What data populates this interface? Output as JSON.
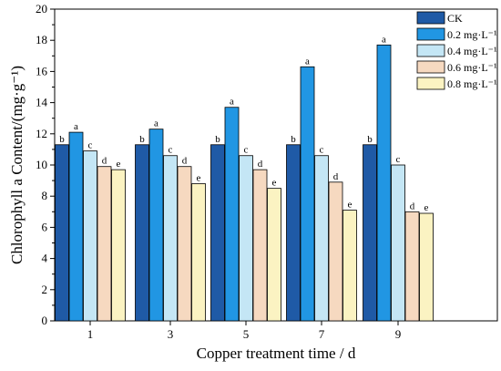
{
  "chart_data": {
    "type": "bar",
    "xlabel": "Copper treatment time / d",
    "ylabel": "Chlorophyll a Content/(mg·g⁻¹)",
    "ylim": [
      0,
      20
    ],
    "yticks": [
      0,
      2,
      4,
      6,
      8,
      10,
      12,
      14,
      16,
      18,
      20
    ],
    "categories": [
      "1",
      "3",
      "5",
      "7",
      "9"
    ],
    "legend_position": "top-right",
    "series": [
      {
        "name": "CK",
        "color": "#1f5aa6",
        "values": [
          11.3,
          11.3,
          11.3,
          11.3,
          11.3
        ],
        "labels": [
          "b",
          "b",
          "b",
          "b",
          "b"
        ]
      },
      {
        "name": "0.2 mg·L⁻¹",
        "color": "#2196e3",
        "values": [
          12.1,
          12.3,
          13.7,
          16.3,
          17.7
        ],
        "labels": [
          "a",
          "a",
          "a",
          "a",
          "a"
        ]
      },
      {
        "name": "0.4 mg·L⁻¹",
        "color": "#c4e6f5",
        "values": [
          10.9,
          10.6,
          10.6,
          10.6,
          10.0
        ],
        "labels": [
          "c",
          "c",
          "c",
          "c",
          "c"
        ]
      },
      {
        "name": "0.6 mg·L⁻¹",
        "color": "#f6d9c0",
        "values": [
          9.9,
          9.9,
          9.7,
          8.9,
          7.0
        ],
        "labels": [
          "d",
          "d",
          "d",
          "d",
          "d"
        ]
      },
      {
        "name": "0.8 mg·L⁻¹",
        "color": "#fbf3c2",
        "values": [
          9.7,
          8.8,
          8.5,
          7.1,
          6.9
        ],
        "labels": [
          "e",
          "e",
          "e",
          "e",
          "e"
        ]
      }
    ]
  }
}
